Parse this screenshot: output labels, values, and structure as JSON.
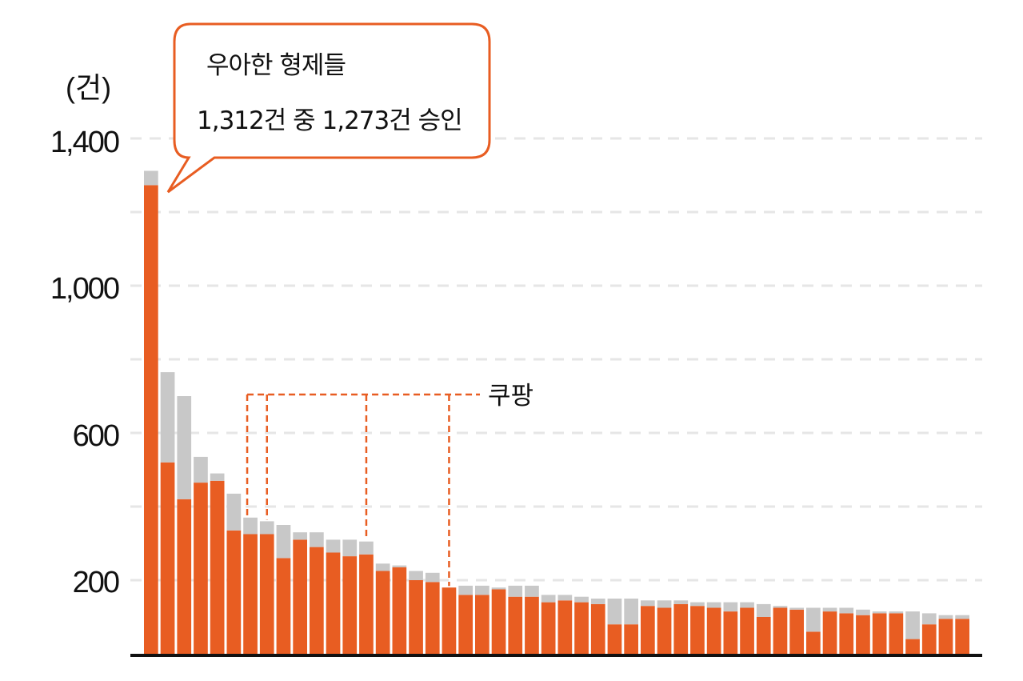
{
  "chart_data": {
    "type": "bar",
    "stacked": true,
    "unit_label": "(건)",
    "yticks": [
      "1,400",
      "1,000",
      "600",
      "200"
    ],
    "ylim": [
      0,
      1400
    ],
    "grid": "horizontal dashed",
    "series": [
      {
        "name": "",
        "color": "#E85D22",
        "values": [
          1273,
          520,
          420,
          465,
          470,
          335,
          325,
          325,
          260,
          310,
          290,
          275,
          265,
          270,
          225,
          235,
          200,
          195,
          180,
          160,
          160,
          175,
          155,
          155,
          140,
          145,
          140,
          135,
          80,
          80,
          130,
          125,
          135,
          130,
          125,
          115,
          125,
          100,
          125,
          120,
          60,
          115,
          110,
          105,
          110,
          110,
          40,
          80,
          95,
          95
        ]
      },
      {
        "name": "",
        "color": "#C8C8C8",
        "values": [
          39,
          245,
          280,
          70,
          20,
          100,
          45,
          35,
          90,
          20,
          40,
          35,
          45,
          35,
          20,
          5,
          25,
          25,
          0,
          25,
          25,
          5,
          30,
          30,
          20,
          15,
          15,
          15,
          70,
          70,
          15,
          20,
          10,
          10,
          15,
          25,
          15,
          35,
          5,
          5,
          65,
          10,
          15,
          15,
          5,
          5,
          75,
          30,
          10,
          10
        ]
      }
    ],
    "callout": {
      "line1": "우아한 형제들",
      "line2": "1,312건 중 1,273건 승인",
      "bar_index": 0
    },
    "annotation": {
      "label": "쿠팡",
      "bar_indices": [
        6,
        7,
        13,
        18
      ]
    }
  }
}
